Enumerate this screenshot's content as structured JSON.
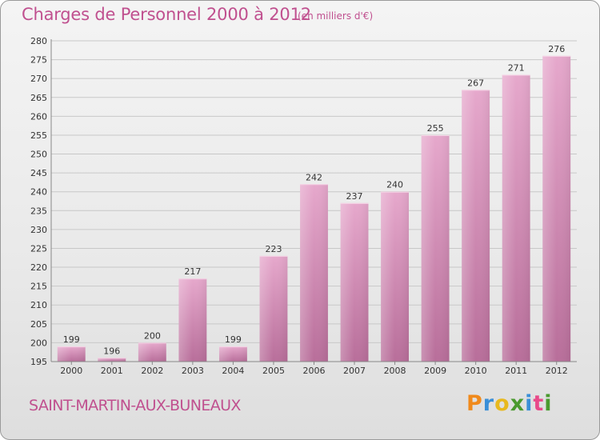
{
  "header": {
    "title": "Charges de Personnel 2000 à 2012",
    "subtitle": "(en milliers d'€)"
  },
  "footer": {
    "commune": "SAINT-MARTIN-AUX-BUNEAUX",
    "logo_text": "Proxiti"
  },
  "colors": {
    "accent": "#c0508f",
    "bar_top": "#e6a8cc",
    "bar_bottom": "#b86e9a",
    "logo": [
      "#f08a1c",
      "#3a8fd8",
      "#e8b91e",
      "#4a9a2e",
      "#3a8fd8",
      "#e84a8a",
      "#4a9a2e"
    ]
  },
  "chart_data": {
    "type": "bar",
    "title": "Charges de Personnel 2000 à 2012",
    "subtitle": "(en milliers d'€)",
    "categories": [
      "2000",
      "2001",
      "2002",
      "2003",
      "2004",
      "2005",
      "2006",
      "2007",
      "2008",
      "2009",
      "2010",
      "2011",
      "2012"
    ],
    "values": [
      199,
      196,
      200,
      217,
      199,
      223,
      242,
      237,
      240,
      255,
      267,
      271,
      276
    ],
    "ylim": [
      195,
      280
    ],
    "yticks": [
      195,
      200,
      205,
      210,
      215,
      220,
      225,
      230,
      235,
      240,
      245,
      250,
      255,
      260,
      265,
      270,
      275,
      280
    ],
    "grid": true,
    "legend": "none"
  }
}
